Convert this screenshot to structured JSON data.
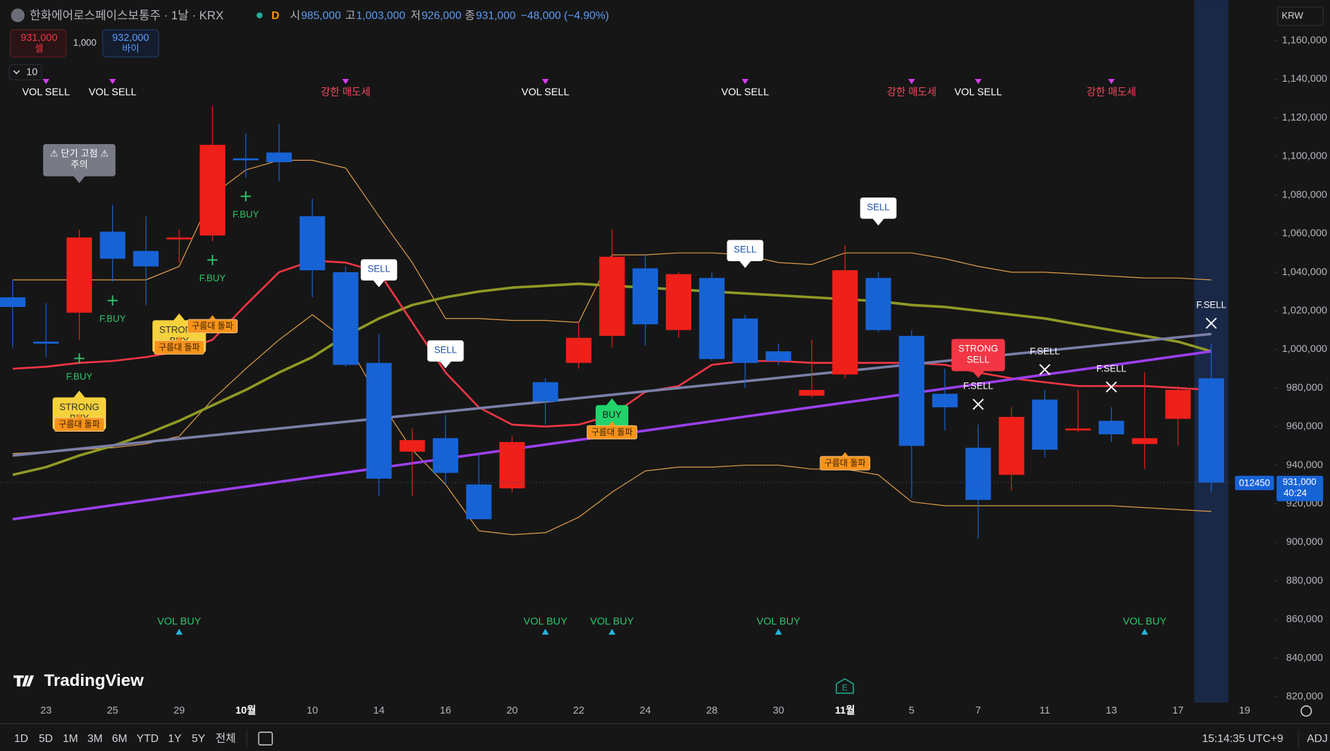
{
  "chart_data": {
    "type": "candlestick",
    "title": "한화에어로스페이스보통주 · 1날 · KRX",
    "interval_badge": "D",
    "legend": {
      "o_label": "시",
      "o": "985,000",
      "h_label": "고",
      "h": "1,003,000",
      "l_label": "저",
      "l": "926,000",
      "c_label": "종",
      "c": "931,000",
      "change": "−48,000 (−4.90%)"
    },
    "order_panel": {
      "sell_price": "931,000",
      "sell_label": "셀",
      "quantity": "1,000",
      "buy_price": "932,000",
      "buy_label": "바이"
    },
    "indicator_count": "10",
    "currency": "KRW",
    "symbol_code": "012450",
    "last_price_label": "931,000",
    "countdown": "40:24",
    "brand": "TradingView",
    "earnings_icon": "E",
    "ranges": [
      "1D",
      "5D",
      "1M",
      "3M",
      "6M",
      "YTD",
      "1Y",
      "5Y",
      "전체"
    ],
    "clock": "15:14:35 UTC+9",
    "adj": "ADJ",
    "up_color": "#ef1f1a",
    "down_color": "#1763d6",
    "grid": false,
    "categories": [
      null,
      "23",
      null,
      "25",
      null,
      "29",
      null,
      "10월",
      null,
      "10",
      null,
      "14",
      null,
      "16",
      null,
      "20",
      null,
      "22",
      null,
      "24",
      null,
      "28",
      null,
      "30",
      null,
      "11월",
      null,
      "5",
      null,
      "7",
      null,
      "11",
      null,
      "13",
      null,
      "17",
      null,
      "19"
    ],
    "open": [
      1027000,
      1004000,
      1019000,
      1061000,
      1051000,
      1057000,
      1059000,
      1099000,
      1102000,
      1069000,
      1040000,
      993000,
      947000,
      954000,
      930000,
      928000,
      983000,
      993000,
      1007000,
      1042000,
      1010000,
      1037000,
      1016000,
      999000,
      976000,
      987000,
      1037000,
      1007000,
      977000,
      949000,
      935000,
      974000,
      958000,
      963000,
      951000,
      964000,
      985000,
      null
    ],
    "high": [
      1036000,
      1024000,
      1062000,
      1075000,
      1069000,
      1062000,
      1126000,
      1112000,
      1117000,
      1078000,
      1043000,
      1008000,
      959000,
      966000,
      946000,
      955000,
      985000,
      1014000,
      1062000,
      1049000,
      1040000,
      1040000,
      1018000,
      1003000,
      1005000,
      1054000,
      1040000,
      1010000,
      990000,
      961000,
      970000,
      979000,
      979000,
      970000,
      988000,
      981000,
      1003000,
      null
    ],
    "low": [
      1001000,
      996000,
      1005000,
      1035000,
      1023000,
      1045000,
      1056000,
      1089000,
      1087000,
      1027000,
      991000,
      924000,
      924000,
      930000,
      912000,
      926000,
      961000,
      990000,
      1001000,
      1002000,
      1006000,
      994000,
      980000,
      992000,
      975000,
      985000,
      1009000,
      923000,
      958000,
      902000,
      927000,
      944000,
      957000,
      952000,
      938000,
      950000,
      926000,
      null
    ],
    "close": [
      1022000,
      1003000,
      1058000,
      1047000,
      1043000,
      1058000,
      1106000,
      1098000,
      1097000,
      1041000,
      992000,
      933000,
      953000,
      936000,
      912000,
      952000,
      973000,
      1006000,
      1048000,
      1013000,
      1039000,
      995000,
      993000,
      994000,
      979000,
      1041000,
      1010000,
      950000,
      970000,
      922000,
      965000,
      948000,
      959000,
      956000,
      954000,
      979000,
      931000,
      null
    ],
    "overlays": [
      {
        "color": "#e2a04a",
        "width": 1,
        "values": [
          1036000,
          1036000,
          1036000,
          1036000,
          1036000,
          1043000,
          1080000,
          1093000,
          1098000,
          1098000,
          1094000,
          1069000,
          1045000,
          1016000,
          1016000,
          1015000,
          1015000,
          1014000,
          1049000,
          1049000,
          1050000,
          1050000,
          1049000,
          1045000,
          1044000,
          1050000,
          1050000,
          1050000,
          1047000,
          1043000,
          1040000,
          1040000,
          1039000,
          1038000,
          1037000,
          1037000,
          1036000,
          null
        ]
      },
      {
        "color": "#e2a04a",
        "width": 1,
        "values": [
          946000,
          947000,
          948000,
          949000,
          951000,
          955000,
          974000,
          990000,
          1005000,
          1018000,
          1005000,
          974000,
          948000,
          930000,
          906000,
          904000,
          905000,
          913000,
          926000,
          937000,
          939000,
          939000,
          940000,
          940000,
          938000,
          938000,
          935000,
          921000,
          919000,
          919000,
          919000,
          919000,
          919000,
          919000,
          918000,
          917000,
          916000,
          null
        ]
      },
      {
        "color": "#8f9a24",
        "width": 3,
        "values": [
          935000,
          939000,
          945000,
          950000,
          956000,
          963000,
          971000,
          979000,
          988000,
          996000,
          1007000,
          1016000,
          1023000,
          1027000,
          1030000,
          1032000,
          1033000,
          1034000,
          1033000,
          1032000,
          1031000,
          1030000,
          1029000,
          1028000,
          1027000,
          1026000,
          1025000,
          1023000,
          1022000,
          1020000,
          1018000,
          1016000,
          1013000,
          1010000,
          1007000,
          1004000,
          999000,
          null
        ]
      },
      {
        "color": "#f23645",
        "width": 2.2,
        "values": [
          990000,
          991000,
          993000,
          994000,
          996000,
          999000,
          1005000,
          1023000,
          1040000,
          1046000,
          1045000,
          1040000,
          1014000,
          988000,
          970000,
          961000,
          960000,
          961000,
          966000,
          978000,
          981000,
          992000,
          994000,
          994000,
          993000,
          993000,
          993000,
          993000,
          992000,
          988000,
          985000,
          983000,
          981000,
          981000,
          981000,
          980000,
          979000,
          null
        ]
      }
    ],
    "trendlines": [
      {
        "color": "#7b7fa8",
        "width": 3,
        "x": [
          0,
          36
        ],
        "values": [
          945000,
          1008000
        ]
      },
      {
        "color": "#9d3ff0",
        "width": 3,
        "x": [
          0,
          36
        ],
        "values": [
          912000,
          999000
        ]
      }
    ],
    "ylim": [
      817000,
      1181000
    ],
    "yticks": [
      {
        "value": 820000,
        "label": "820,000"
      },
      {
        "value": 840000,
        "label": "840,000"
      },
      {
        "value": 860000,
        "label": "860,000"
      },
      {
        "value": 880000,
        "label": "880,000"
      },
      {
        "value": 900000,
        "label": "900,000"
      },
      {
        "value": 920000,
        "label": "920,000"
      },
      {
        "value": 940000,
        "label": "940,000"
      },
      {
        "value": 960000,
        "label": "960,000"
      },
      {
        "value": 980000,
        "label": "980,000"
      },
      {
        "value": 1000000,
        "label": "1,000,000"
      },
      {
        "value": 1020000,
        "label": "1,020,000"
      },
      {
        "value": 1040000,
        "label": "1,040,000"
      },
      {
        "value": 1060000,
        "label": "1,060,000"
      },
      {
        "value": 1080000,
        "label": "1,080,000"
      },
      {
        "value": 1100000,
        "label": "1,100,000"
      },
      {
        "value": 1120000,
        "label": "1,120,000"
      },
      {
        "value": 1140000,
        "label": "1,140,000"
      },
      {
        "value": 1160000,
        "label": "1,160,000"
      }
    ],
    "top_signals": {
      "marker_color": "#d63ff0",
      "items": [
        {
          "text": "VOL SELL",
          "index": 1,
          "color": "#ffffff"
        },
        {
          "text": "VOL SELL",
          "index": 3,
          "color": "#ffffff"
        },
        {
          "text": "강한 매도세",
          "index": 10,
          "color": "#f2495c"
        },
        {
          "text": "VOL SELL",
          "index": 16,
          "color": "#ffffff"
        },
        {
          "text": "VOL SELL",
          "index": 22,
          "color": "#ffffff"
        },
        {
          "text": "강한 매도세",
          "index": 27,
          "color": "#f2495c"
        },
        {
          "text": "VOL SELL",
          "index": 29,
          "color": "#ffffff"
        },
        {
          "text": "강한 매도세",
          "index": 33,
          "color": "#f2495c"
        }
      ]
    },
    "bottom_signals": {
      "marker_color": "#26b5d9",
      "color": "#2fc46a",
      "items": [
        {
          "text": "VOL BUY",
          "index": 5
        },
        {
          "text": "VOL BUY",
          "index": 16
        },
        {
          "text": "VOL BUY",
          "index": 18
        },
        {
          "text": "VOL BUY",
          "index": 23
        },
        {
          "text": "VOL BUY",
          "index": 34
        }
      ]
    },
    "signals": [
      {
        "lines": [
          "⚠ 단기 고점 ⚠",
          "주의"
        ],
        "index": 2,
        "side": "above",
        "color": "#787b86",
        "text_color": "#ffffff"
      },
      {
        "lines": [
          "SELL"
        ],
        "index": 11,
        "side": "above",
        "color": "#ffffff",
        "text_color": "#1e4fa8"
      },
      {
        "lines": [
          "SELL"
        ],
        "index": 13,
        "side": "above",
        "color": "#ffffff",
        "text_color": "#1e4fa8"
      },
      {
        "lines": [
          "SELL"
        ],
        "index": 22,
        "side": "above",
        "color": "#ffffff",
        "text_color": "#1e4fa8"
      },
      {
        "lines": [
          "SELL"
        ],
        "index": 26,
        "side": "above",
        "color": "#ffffff",
        "text_color": "#1e4fa8"
      },
      {
        "lines": [
          "STRONG",
          "SELL"
        ],
        "index": 29,
        "side": "above",
        "color": "#f23645",
        "text_color": "#ffffff"
      },
      {
        "lines": [
          "BUY"
        ],
        "index": 18,
        "side": "below",
        "color": "#22d36b",
        "text_color": "#1b1b1b"
      },
      {
        "lines": [
          "STRONG",
          "BUY"
        ],
        "index": 2,
        "side": "below",
        "color": "#f5d13b",
        "text_color": "#333333"
      },
      {
        "lines": [
          "STRONG",
          "BUY"
        ],
        "index": 5,
        "side": "below",
        "color": "#f5d13b",
        "text_color": "#333333"
      }
    ],
    "cloud_tags": {
      "text": "구름대 돌파",
      "color": "#f7931a",
      "text_color": "#3a2000",
      "indexes": [
        2,
        5,
        6,
        18,
        25
      ]
    },
    "fractals": [
      {
        "text": "F.BUY",
        "index": 2,
        "side": "below",
        "color": "#2fc46a"
      },
      {
        "text": "F.BUY",
        "index": 3,
        "side": "below",
        "color": "#2fc46a"
      },
      {
        "text": "F.BUY",
        "index": 6,
        "side": "below",
        "color": "#2fc46a"
      },
      {
        "text": "F.BUY",
        "index": 7,
        "side": "below",
        "color": "#2fc46a"
      },
      {
        "text": "F.SELL",
        "index": 29,
        "side": "above",
        "color": "#ffffff"
      },
      {
        "text": "F.SELL",
        "index": 31,
        "side": "above",
        "color": "#ffffff"
      },
      {
        "text": "F.SELL",
        "index": 33,
        "side": "above",
        "color": "#ffffff"
      },
      {
        "text": "F.SELL",
        "index": 36,
        "side": "above",
        "color": "#ffffff"
      }
    ]
  }
}
